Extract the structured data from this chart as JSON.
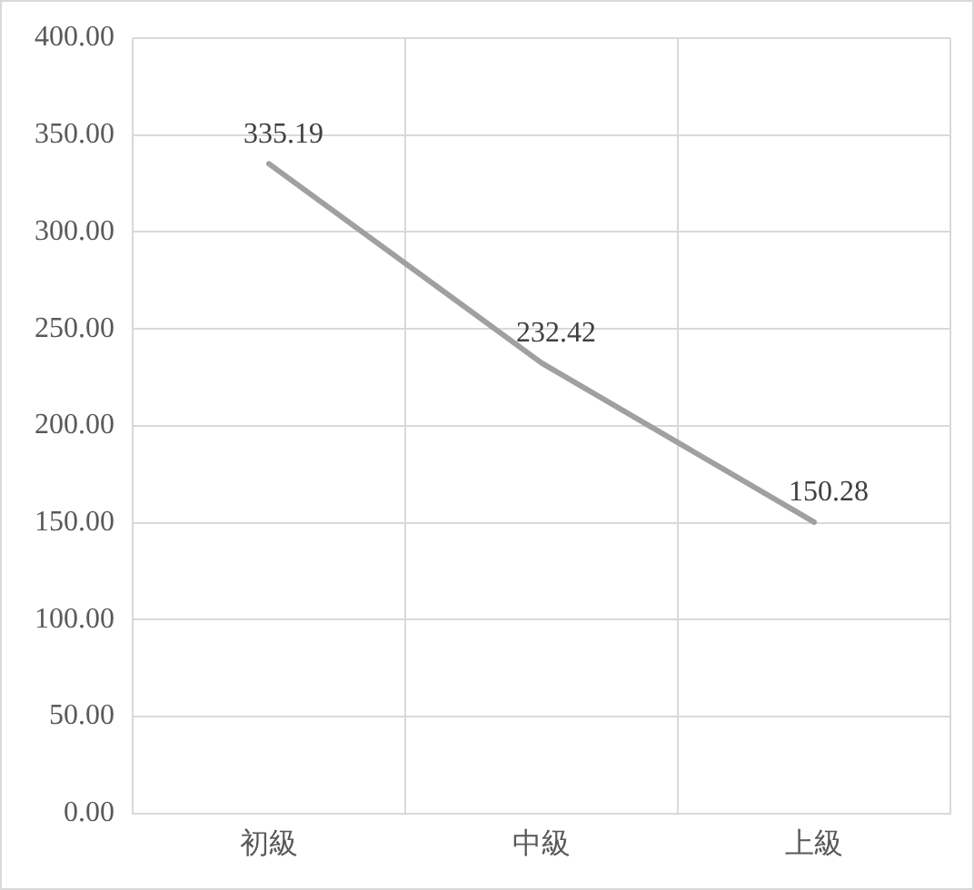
{
  "chart_data": {
    "type": "line",
    "categories": [
      "初級",
      "中級",
      "上級"
    ],
    "series": [
      {
        "color": "#a0a0a0",
        "values": [
          335.19,
          232.42,
          150.28
        ]
      }
    ],
    "ylim": [
      0,
      400
    ],
    "yticks": [
      {
        "value": 0,
        "label": "0.00"
      },
      {
        "value": 50,
        "label": "50.00"
      },
      {
        "value": 100,
        "label": "100.00"
      },
      {
        "value": 150,
        "label": "150.00"
      },
      {
        "value": 200,
        "label": "200.00"
      },
      {
        "value": 250,
        "label": "250.00"
      },
      {
        "value": 300,
        "label": "300.00"
      },
      {
        "value": 350,
        "label": "350.00"
      },
      {
        "value": 400,
        "label": "400.00"
      }
    ],
    "grid": true,
    "legend": false,
    "marker": "none",
    "line_style": "solid",
    "data_labels": true
  }
}
